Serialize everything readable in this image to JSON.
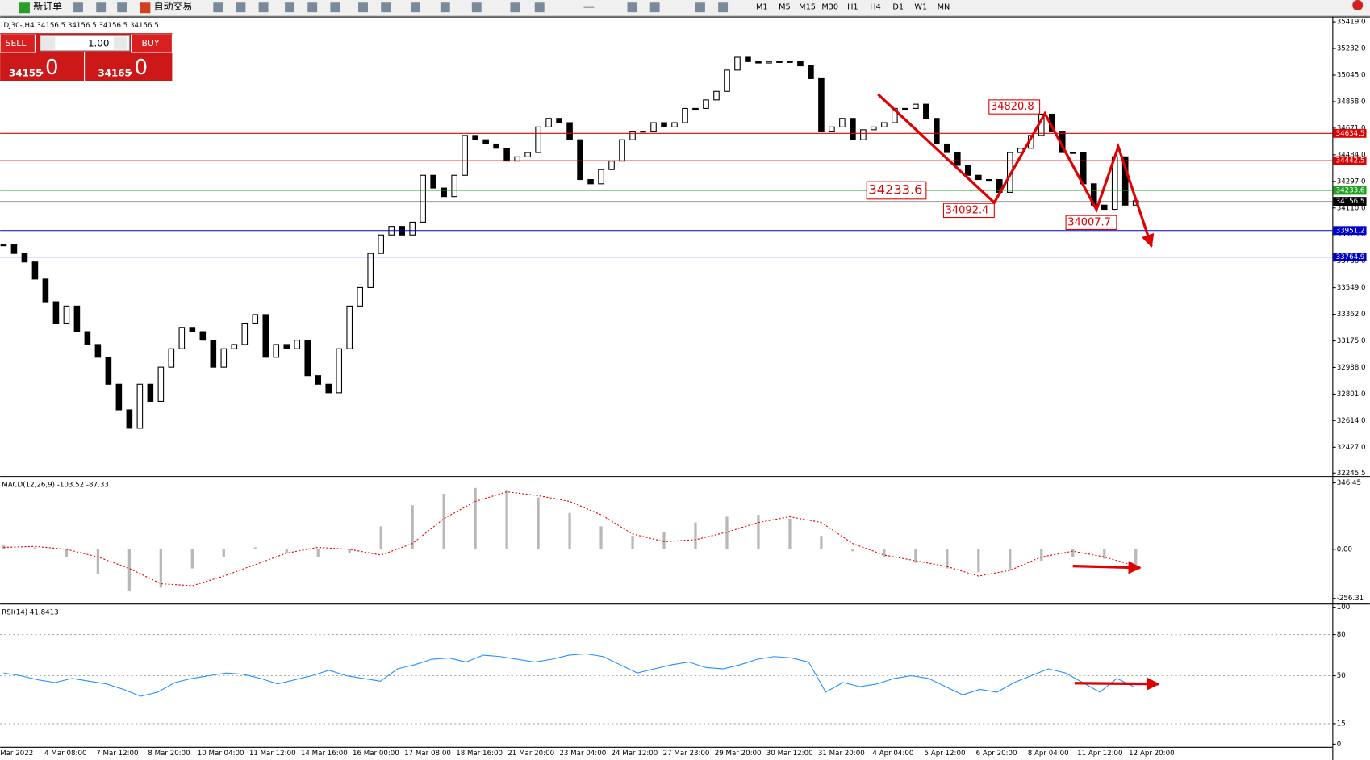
{
  "toolbar": {
    "new_order": "新订单",
    "auto_trading": "自动交易",
    "timeframes": [
      "M1",
      "M5",
      "M15",
      "M30",
      "H1",
      "H4",
      "D1",
      "W1",
      "MN"
    ]
  },
  "trade_panel": {
    "sell": "SELL",
    "buy": "BUY",
    "lots": "1.00",
    "sell_price": {
      "main": "34155",
      "fraction": ".0"
    },
    "buy_price": {
      "main": "34165",
      "fraction": ".0"
    }
  },
  "chart_data": [
    {
      "type": "candlestick",
      "title": "DJ30-,H4  34156.5 34156.5 34156.5 34156.5",
      "values": [
        33850,
        33790,
        33730,
        33610,
        33450,
        33300,
        33420,
        33240,
        33150,
        33060,
        32870,
        32690,
        32560,
        32870,
        32750,
        32990,
        33120,
        33270,
        33240,
        33180,
        32990,
        33120,
        33150,
        33300,
        33360,
        33060,
        33150,
        33120,
        33180,
        32930,
        32870,
        32810,
        33120,
        33420,
        33550,
        33790,
        33920,
        33980,
        33920,
        34010,
        34340,
        34250,
        34190,
        34340,
        34620,
        34590,
        34560,
        34530,
        34440,
        34470,
        34500,
        34680,
        34740,
        34710,
        34590,
        34310,
        34280,
        34380,
        34440,
        34590,
        34650,
        34650,
        34710,
        34680,
        34710,
        34810,
        34810,
        34870,
        34930,
        35080,
        35170,
        35140,
        35130,
        35140,
        35140,
        35140,
        35110,
        35020,
        34650,
        34680,
        34740,
        34590,
        34660,
        34680,
        34710,
        34810,
        34810,
        34840,
        34740,
        34560,
        34500,
        34410,
        34340,
        34310,
        34310,
        34220,
        34500,
        34530,
        34620,
        34770,
        34650,
        34500,
        34500,
        34280,
        34130,
        34100,
        34470,
        34130,
        34160
      ],
      "ylim": [
        32224,
        35450
      ],
      "yticks": [
        {
          "value": 35419,
          "label": "35419.0"
        },
        {
          "value": 35232,
          "label": "35232.0"
        },
        {
          "value": 35045,
          "label": "35045.0"
        },
        {
          "value": 34858,
          "label": "34858.0"
        },
        {
          "value": 34671,
          "label": "34671.0"
        },
        {
          "value": 34484,
          "label": "34484.0"
        },
        {
          "value": 34297,
          "label": "34297.0"
        },
        {
          "value": 34110,
          "label": "34110.0"
        },
        {
          "value": 33923,
          "label": "33923.0"
        },
        {
          "value": 33736,
          "label": "33736.0"
        },
        {
          "value": 33549,
          "label": "33549.0"
        },
        {
          "value": 33362,
          "label": "33362.0"
        },
        {
          "value": 33175,
          "label": "33175.0"
        },
        {
          "value": 32988,
          "label": "32988.0"
        },
        {
          "value": 32801,
          "label": "32801.0"
        },
        {
          "value": 32614,
          "label": "32614.0"
        },
        {
          "value": 32427,
          "label": "32427.0"
        },
        32245.5
      ],
      "levels": [
        {
          "value": 34634.5,
          "color": "#e00000"
        },
        {
          "value": 34442.5,
          "color": "#e00000"
        },
        {
          "value": 34233.6,
          "color": "#22a022"
        },
        {
          "value": 34156.5,
          "color": "#000000"
        },
        {
          "value": 33951.2,
          "color": "#0000cc"
        },
        {
          "value": 33764.9,
          "color": "#0000cc"
        }
      ],
      "annotations": [
        34820.8,
        34233.6,
        34092.4,
        34007.7
      ],
      "x_labels": [
        "Mar 2022",
        "4 Mar 08:00",
        "7 Mar 12:00",
        "8 Mar 20:00",
        "10 Mar 04:00",
        "11 Mar 12:00",
        "14 Mar 16:00",
        "16 Mar 00:00",
        "17 Mar 08:00",
        "18 Mar 16:00",
        "21 Mar 20:00",
        "23 Mar 04:00",
        "24 Mar 12:00",
        "27 Mar 23:00",
        "29 Mar 20:00",
        "30 Mar 12:00",
        "31 Mar 20:00",
        "4 Apr 04:00",
        "5 Apr 12:00",
        "6 Apr 20:00",
        "8 Apr 04:00",
        "11 Apr 12:00",
        "12 Apr 20:00"
      ]
    },
    {
      "type": "macd",
      "title": "MACD(12,26,9) -103.52 -87.33",
      "series": [
        {
          "name": "MACD",
          "color": "#b8b8b8",
          "values": [
            20,
            10,
            -40,
            -130,
            -220,
            -200,
            -100,
            -40,
            10,
            -20,
            -40,
            -20,
            120,
            230,
            290,
            320,
            310,
            270,
            190,
            120,
            70,
            90,
            140,
            170,
            180,
            160,
            70,
            -10,
            -40,
            -70,
            -100,
            -120,
            -110,
            -60,
            -40,
            -50,
            -103.52
          ]
        },
        {
          "name": "Signal",
          "color": "#e00000",
          "values": [
            10,
            15,
            0,
            -40,
            -100,
            -180,
            -190,
            -140,
            -80,
            -20,
            10,
            0,
            -30,
            30,
            160,
            250,
            300,
            280,
            250,
            180,
            80,
            40,
            50,
            90,
            140,
            170,
            140,
            30,
            -30,
            -60,
            -90,
            -140,
            -110,
            -40,
            -10,
            -40,
            -87.33
          ]
        }
      ],
      "ylim": [
        -279,
        373
      ],
      "yticks": [
        346.45,
        {
          "value": 0,
          "label": "0.00"
        },
        -256.31
      ]
    },
    {
      "type": "rsi",
      "title": "RSI(14) 41.8413",
      "color": "#1e90ff",
      "values": [
        52,
        50,
        47,
        45,
        48,
        46,
        44,
        40,
        35,
        38,
        45,
        48,
        50,
        52,
        51,
        48,
        44,
        47,
        50,
        54,
        50,
        48,
        46,
        55,
        58,
        62,
        63,
        60,
        65,
        64,
        62,
        60,
        62,
        65,
        66,
        64,
        58,
        52,
        55,
        58,
        60,
        56,
        55,
        58,
        62,
        64,
        63,
        60,
        38,
        45,
        42,
        44,
        48,
        50,
        48,
        42,
        36,
        40,
        38,
        45,
        50,
        55,
        52,
        45,
        38,
        48,
        41.8413
      ],
      "ylim": [
        -2,
        102
      ],
      "yticks": [
        100,
        80,
        50,
        15,
        0
      ],
      "levels": [
        80,
        50,
        15
      ]
    }
  ]
}
